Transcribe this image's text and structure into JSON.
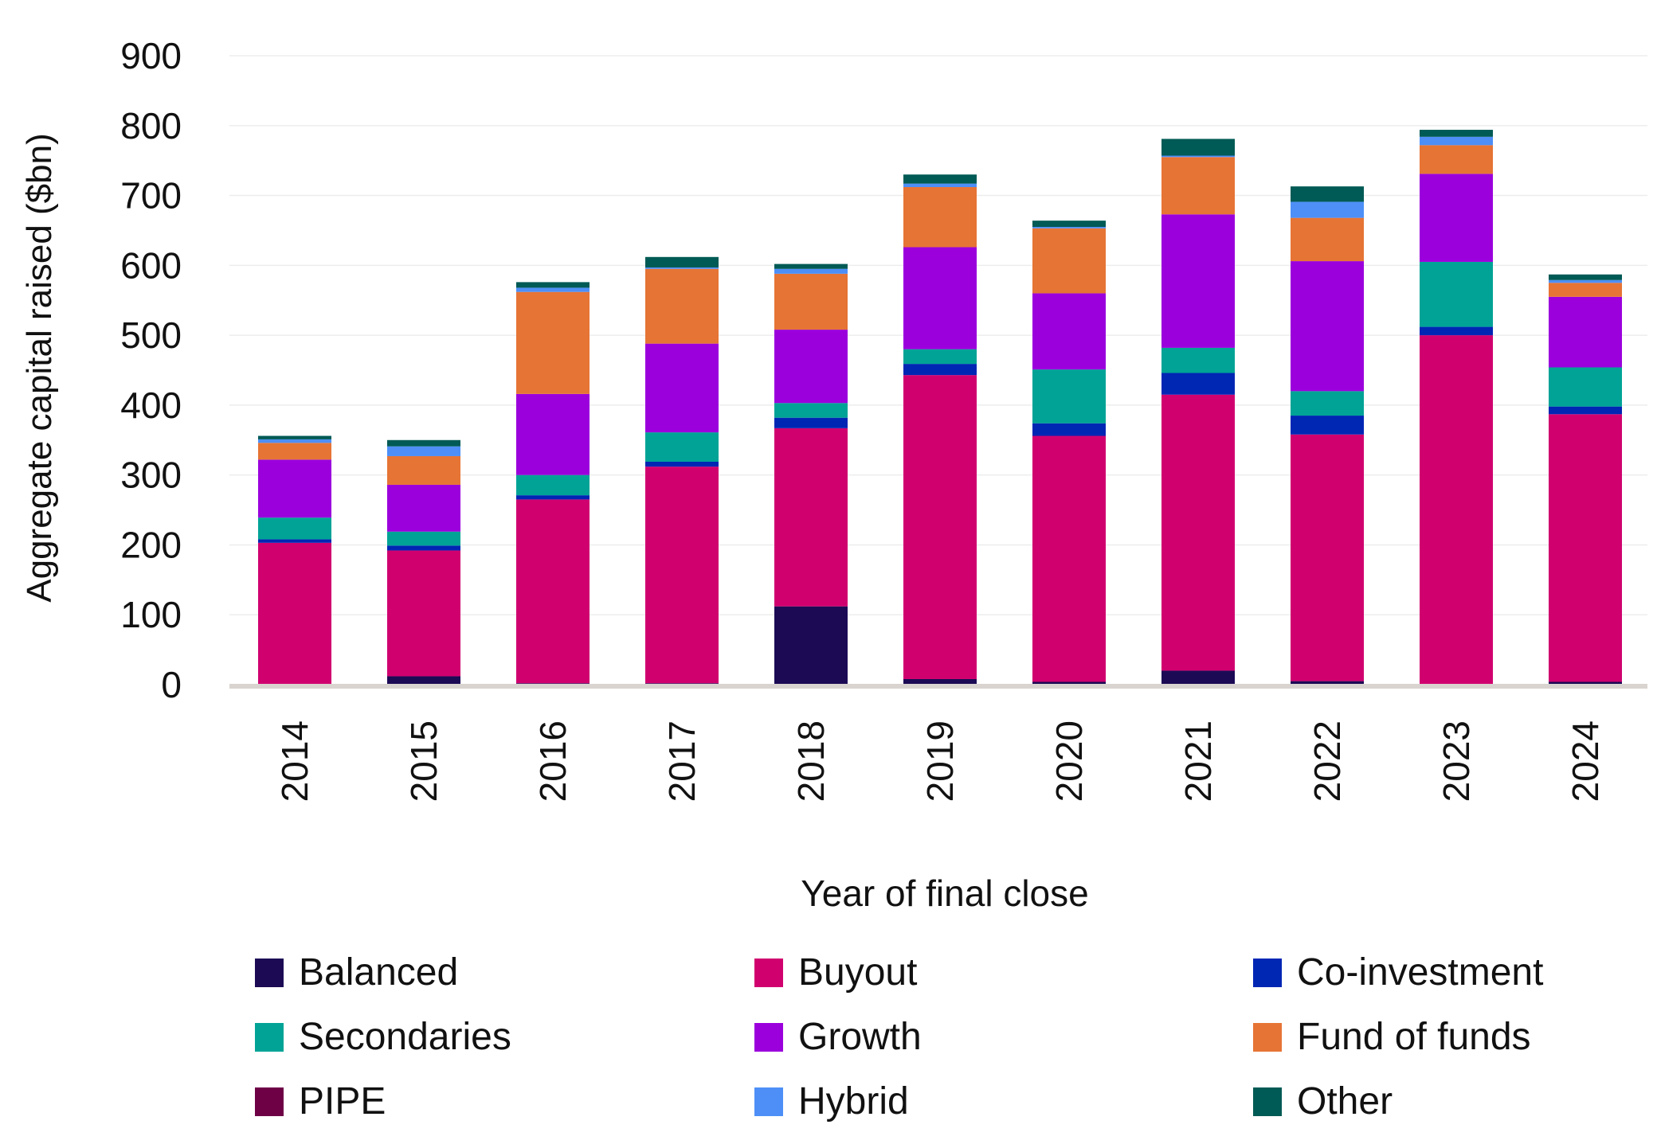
{
  "chart_data": {
    "type": "bar",
    "stacked": true,
    "xlabel": "Year of final close",
    "ylabel": "Aggregate capital raised ($bn)",
    "ylim": [
      0,
      900
    ],
    "yticks": [
      0,
      100,
      200,
      300,
      400,
      500,
      600,
      700,
      800,
      900
    ],
    "grid": true,
    "legend_position": "bottom",
    "categories": [
      "2014",
      "2015",
      "2016",
      "2017",
      "2018",
      "2019",
      "2020",
      "2021",
      "2022",
      "2023",
      "2024"
    ],
    "series": [
      {
        "name": "Balanced",
        "color": "#1c0a55",
        "values": [
          0,
          12,
          2,
          2,
          112,
          8,
          4,
          20,
          5,
          0,
          4
        ]
      },
      {
        "name": "PIPE",
        "color": "#6e0046",
        "values": [
          0,
          0,
          0,
          0,
          0,
          0,
          0,
          0,
          0,
          0,
          0
        ]
      },
      {
        "name": "Buyout",
        "color": "#d0006f",
        "values": [
          203,
          180,
          263,
          310,
          255,
          435,
          352,
          395,
          353,
          500,
          383
        ]
      },
      {
        "name": "Co-investment",
        "color": "#0026b4",
        "values": [
          5,
          7,
          6,
          7,
          15,
          16,
          18,
          31,
          27,
          12,
          11
        ]
      },
      {
        "name": "Secondaries",
        "color": "#00a396",
        "values": [
          31,
          20,
          29,
          42,
          21,
          21,
          77,
          36,
          35,
          93,
          56
        ]
      },
      {
        "name": "Growth",
        "color": "#9b00dc",
        "values": [
          83,
          67,
          116,
          127,
          105,
          146,
          109,
          191,
          186,
          126,
          101
        ]
      },
      {
        "name": "Fund of funds",
        "color": "#e67435",
        "values": [
          24,
          41,
          146,
          107,
          80,
          86,
          93,
          82,
          62,
          41,
          20
        ]
      },
      {
        "name": "Hybrid",
        "color": "#4d8ff7",
        "values": [
          5,
          14,
          6,
          2,
          7,
          5,
          2,
          2,
          23,
          12,
          4
        ]
      },
      {
        "name": "Other",
        "color": "#005a55",
        "values": [
          5,
          9,
          8,
          15,
          7,
          13,
          9,
          24,
          22,
          10,
          8
        ]
      }
    ]
  },
  "legend": {
    "items": [
      {
        "name": "Balanced",
        "color": "#1c0a55"
      },
      {
        "name": "Buyout",
        "color": "#d0006f"
      },
      {
        "name": "Co-investment",
        "color": "#0026b4"
      },
      {
        "name": "Secondaries",
        "color": "#00a396"
      },
      {
        "name": "Growth",
        "color": "#9b00dc"
      },
      {
        "name": "Fund of funds",
        "color": "#e67435"
      },
      {
        "name": "PIPE",
        "color": "#6e0046"
      },
      {
        "name": "Hybrid",
        "color": "#4d8ff7"
      },
      {
        "name": "Other",
        "color": "#005a55"
      }
    ]
  }
}
